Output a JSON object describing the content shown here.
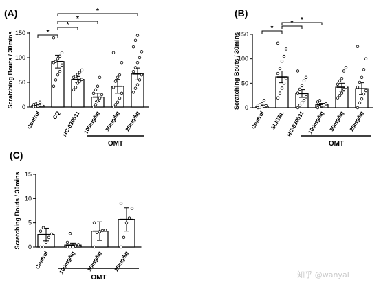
{
  "chart_data": [
    {
      "type": "bar",
      "panel_label": "(A)",
      "ylabel": "Scratching Bouts / 30mins",
      "ylim": [
        0,
        150
      ],
      "yticks": [
        0,
        50,
        100,
        150
      ],
      "categories": [
        "Control",
        "CQ",
        "HC-030031",
        "100mg/kg",
        "50mg/kg",
        "25mg/kg"
      ],
      "values": [
        3,
        92,
        56,
        20,
        42,
        67
      ],
      "errors": [
        1,
        13,
        6,
        8,
        14,
        12
      ],
      "points": [
        [
          0,
          1,
          2,
          3,
          4,
          5,
          6,
          8,
          10
        ],
        [
          42,
          55,
          65,
          72,
          85,
          90,
          92,
          98,
          103,
          110,
          140
        ],
        [
          35,
          40,
          48,
          52,
          56,
          60,
          62,
          66,
          70,
          75
        ],
        [
          0,
          5,
          12,
          18,
          25,
          28,
          35,
          42,
          60
        ],
        [
          0,
          5,
          10,
          18,
          28,
          40,
          52,
          60,
          65,
          90,
          110
        ],
        [
          30,
          38,
          45,
          55,
          65,
          72,
          80,
          90,
          100,
          112,
          122,
          135,
          145
        ]
      ],
      "significance": [
        {
          "label": "*",
          "from": "Control",
          "to": "CQ"
        },
        {
          "label": "*",
          "from": "CQ",
          "to": "HC-030031"
        },
        {
          "label": "*",
          "from": "CQ",
          "to": "100mg/kg"
        },
        {
          "label": "*",
          "from": "CQ",
          "to": "25mg/kg"
        }
      ],
      "group_label": "OMT",
      "group_span": [
        "100mg/kg",
        "25mg/kg"
      ]
    },
    {
      "type": "bar",
      "panel_label": "(B)",
      "ylabel": "Scratching Bouts / 30mins",
      "ylim": [
        0,
        150
      ],
      "yticks": [
        0,
        50,
        100,
        150
      ],
      "categories": [
        "Control",
        "SLIGRL",
        "HC-030031",
        "100mg/kg",
        "50mg/kg",
        "25mg/kg"
      ],
      "values": [
        3,
        63,
        29,
        6,
        42,
        39
      ],
      "errors": [
        1,
        12,
        8,
        3,
        8,
        12
      ],
      "points": [
        [
          0,
          1,
          2,
          3,
          4,
          5,
          6,
          8,
          15
        ],
        [
          20,
          30,
          40,
          50,
          60,
          70,
          80,
          95,
          105,
          120,
          132
        ],
        [
          0,
          5,
          10,
          15,
          22,
          30,
          38,
          45,
          55,
          62,
          75
        ],
        [
          0,
          2,
          4,
          6,
          8,
          12,
          15
        ],
        [
          20,
          25,
          30,
          38,
          42,
          48,
          55,
          60,
          75,
          82
        ],
        [
          0,
          10,
          18,
          28,
          35,
          42,
          52,
          62,
          78,
          100,
          125
        ]
      ],
      "significance": [
        {
          "label": "*",
          "from": "Control",
          "to": "SLIGRL"
        },
        {
          "label": "*",
          "from": "SLIGRL",
          "to": "HC-030031"
        },
        {
          "label": "*",
          "from": "SLIGRL",
          "to": "100mg/kg"
        }
      ],
      "group_label": "OMT",
      "group_span": [
        "100mg/kg",
        "25mg/kg"
      ]
    },
    {
      "type": "bar",
      "panel_label": "(C)",
      "ylabel": "Scratching Bouts / 30mins",
      "ylim": [
        0,
        15
      ],
      "yticks": [
        0,
        5,
        10,
        15
      ],
      "categories": [
        "Control",
        "100mg/kg",
        "50mg/kg",
        "25mg/kg"
      ],
      "values": [
        2.6,
        0.4,
        3.3,
        5.7
      ],
      "errors": [
        1.3,
        0.4,
        1.9,
        2.4
      ],
      "points": [
        [
          0,
          0,
          1,
          2,
          2.7,
          3.3,
          4
        ],
        [
          0,
          0,
          0,
          0.2,
          0.5,
          1,
          2.8
        ],
        [
          0,
          3,
          3.2,
          3.4,
          3.5,
          5
        ],
        [
          0,
          2,
          5,
          6,
          8,
          9
        ]
      ],
      "significance": [],
      "group_label": "OMT",
      "group_span": [
        "100mg/kg",
        "25mg/kg"
      ]
    }
  ],
  "watermark": "知乎 @wanyal"
}
